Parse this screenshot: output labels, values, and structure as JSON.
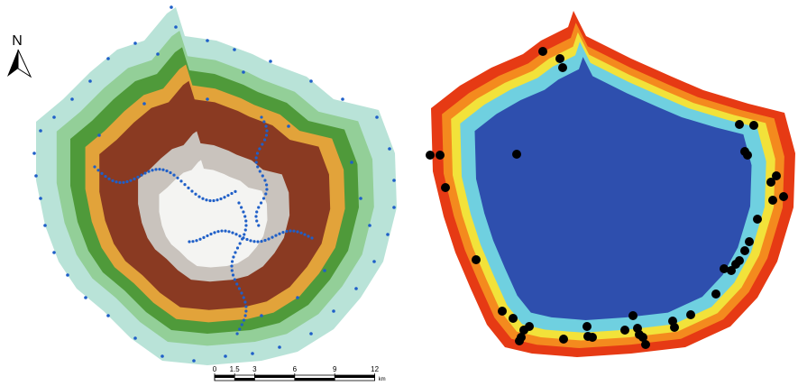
{
  "north_arrow": {
    "label": "N"
  },
  "scale_bar": {
    "ticks": [
      0,
      1.5,
      3,
      6,
      9,
      12
    ],
    "unit": "km"
  }
}
